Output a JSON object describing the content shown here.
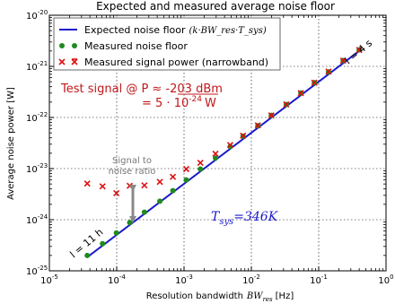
{
  "chart_data": {
    "type": "scatter",
    "title": "Expected and measured average noise floor",
    "xlabel": "Resolution bandwidth",
    "xlabel_symbol": "BW",
    "xlabel_sub": "res",
    "xlabel_unit": "[Hz]",
    "ylabel": "Average noise power [W]",
    "xscale": "log",
    "yscale": "log",
    "xlim": [
      1e-05,
      1
    ],
    "ylim": [
      1e-25,
      1e-20
    ],
    "x_ticks": [
      {
        "value": 1e-05,
        "base": "10",
        "exp": "-5"
      },
      {
        "value": 0.0001,
        "base": "10",
        "exp": "-4"
      },
      {
        "value": 0.001,
        "base": "10",
        "exp": "-3"
      },
      {
        "value": 0.01,
        "base": "10",
        "exp": "-2"
      },
      {
        "value": 0.1,
        "base": "10",
        "exp": "-1"
      },
      {
        "value": 1,
        "base": "10",
        "exp": "0"
      }
    ],
    "y_ticks": [
      {
        "value": 1e-25,
        "base": "10",
        "exp": "-25"
      },
      {
        "value": 1e-24,
        "base": "10",
        "exp": "-24"
      },
      {
        "value": 1e-23,
        "base": "10",
        "exp": "-23"
      },
      {
        "value": 1e-22,
        "base": "10",
        "exp": "-22"
      },
      {
        "value": 1e-21,
        "base": "10",
        "exp": "-21"
      },
      {
        "value": 1e-20,
        "base": "10",
        "exp": "-20"
      }
    ],
    "grid": true,
    "legend_position": "top-left",
    "series": [
      {
        "name": "Expected noise floor",
        "name_formula": "(k·BW_res·T_sys)",
        "type": "line",
        "color": "#1a1acc",
        "x": [
          3.65e-05,
          0.4
        ],
        "y": [
          1.85e-25,
          2e-21
        ]
      },
      {
        "name": "Measured noise floor",
        "type": "scatter",
        "marker": "circle",
        "color": "#1f8a1f",
        "x": [
          3.65e-05,
          6.16e-05,
          9.89e-05,
          0.000156,
          0.000258,
          0.000437,
          0.000683,
          0.00108,
          0.00175,
          0.00293,
          0.00485,
          0.00753,
          0.0125,
          0.0198,
          0.033,
          0.0543,
          0.0862,
          0.14,
          0.231,
          0.4
        ],
        "y": [
          2e-25,
          3.4e-25,
          5.5e-25,
          8.8e-25,
          1.4e-24,
          2.3e-24,
          3.7e-24,
          6e-24,
          9.8e-24,
          1.6e-23,
          2.7e-23,
          4.3e-23,
          6.9e-23,
          1.1e-22,
          1.8e-22,
          3e-22,
          4.8e-22,
          7.8e-22,
          1.3e-21,
          2.1e-21
        ]
      },
      {
        "name": "Measured signal power (narrowband)",
        "type": "scatter",
        "marker": "x",
        "color": "#dd1111",
        "x": [
          3.65e-05,
          6.16e-05,
          9.89e-05,
          0.000156,
          0.000258,
          0.000437,
          0.000683,
          0.00108,
          0.00175,
          0.00293,
          0.00485,
          0.00753,
          0.0125,
          0.0198,
          0.033,
          0.0543,
          0.0862,
          0.14,
          0.231,
          0.4
        ],
        "y": [
          5.1e-24,
          4.5e-24,
          3.3e-24,
          4.6e-24,
          4.7e-24,
          5.5e-24,
          6.9e-24,
          9.8e-24,
          1.3e-23,
          1.95e-23,
          2.9e-23,
          4.4e-23,
          7e-23,
          1.1e-22,
          1.8e-22,
          3e-22,
          4.8e-22,
          7.9e-22,
          1.3e-21,
          2.1e-21
        ]
      }
    ],
    "annotations": {
      "test_signal_line1": "Test signal @ P ≈ -203 dBm",
      "test_signal_line2": "= 5 · 10",
      "test_signal_exp": "-24",
      "test_signal_unit": "W",
      "snr_line1": "Signal to",
      "snr_line2": "noise ratio",
      "tsys_label": "T",
      "tsys_sub": "sys",
      "tsys_value": "=346K",
      "t_high": "l = 4 s",
      "t_low": "l = 11 h"
    },
    "colors": {
      "annotation_red": "#c0181b",
      "snr_arrow": "#888888",
      "tsys_blue": "#1a1acc"
    }
  }
}
